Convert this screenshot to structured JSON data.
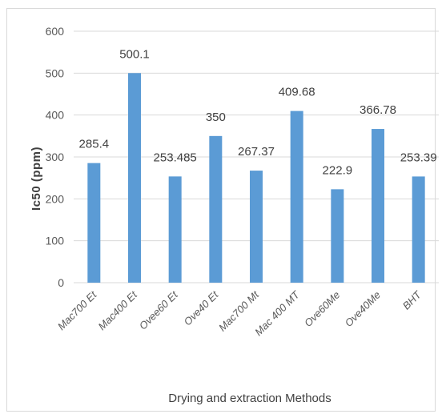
{
  "chart_data": {
    "type": "bar",
    "categories": [
      "Mac700 Et",
      "Mac400 Et",
      "Ovee60 Et",
      "Ove40 Et",
      "Mac700 Mt",
      "Mac 400 MT",
      "Ove60Me",
      "Ove40Me",
      "BHT"
    ],
    "values": [
      285.4,
      500.1,
      253.485,
      350,
      267.37,
      409.68,
      222.9,
      366.78,
      253.39
    ],
    "value_labels": [
      "285.4",
      "500.1",
      "253.485",
      "350",
      "267.37",
      "409.68",
      "222.9",
      "366.78",
      "253.39"
    ],
    "title": "",
    "xlabel": "Drying and extraction Methods",
    "ylabel": "Ic50 (ppm)",
    "ylim": [
      0,
      600
    ],
    "yticks": [
      0,
      100,
      200,
      300,
      400,
      500,
      600
    ],
    "grid": true,
    "legend": "none",
    "bar_color": "#5b9bd5",
    "grid_color": "#d9d9d9"
  }
}
